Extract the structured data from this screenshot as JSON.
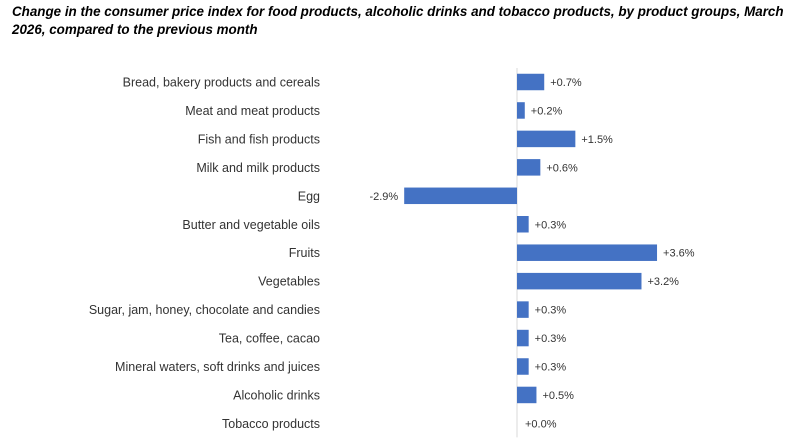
{
  "chart_data": {
    "type": "bar",
    "orientation": "horizontal",
    "title": "Change in the consumer price index for food products, alcoholic drinks and tobacco products, by product groups, March 2026, compared to the previous month",
    "categories": [
      "Bread, bakery products and cereals",
      "Meat and meat products",
      "Fish and fish products",
      "Milk and milk products",
      "Egg",
      "Butter and vegetable oils",
      "Fruits",
      "Vegetables",
      "Sugar, jam, honey, chocolate and candies",
      "Tea, coffee, cacao",
      "Mineral waters, soft drinks and juices",
      "Alcoholic drinks",
      "Tobacco products"
    ],
    "values": [
      0.7,
      0.2,
      1.5,
      0.6,
      -2.9,
      0.3,
      3.6,
      3.2,
      0.3,
      0.3,
      0.3,
      0.5,
      0.0
    ],
    "value_labels": [
      "+0.7%",
      "+0.2%",
      "+1.5%",
      "+0.6%",
      "-2.9%",
      "+0.3%",
      "+3.6%",
      "+3.2%",
      "+0.3%",
      "+0.3%",
      "+0.3%",
      "+0.5%",
      "+0.0%"
    ],
    "xlim": [
      -2.9,
      3.6
    ],
    "grid": false,
    "legend": "none",
    "bar_color": "#4472C4",
    "axis_color": "#D9D9D9"
  }
}
